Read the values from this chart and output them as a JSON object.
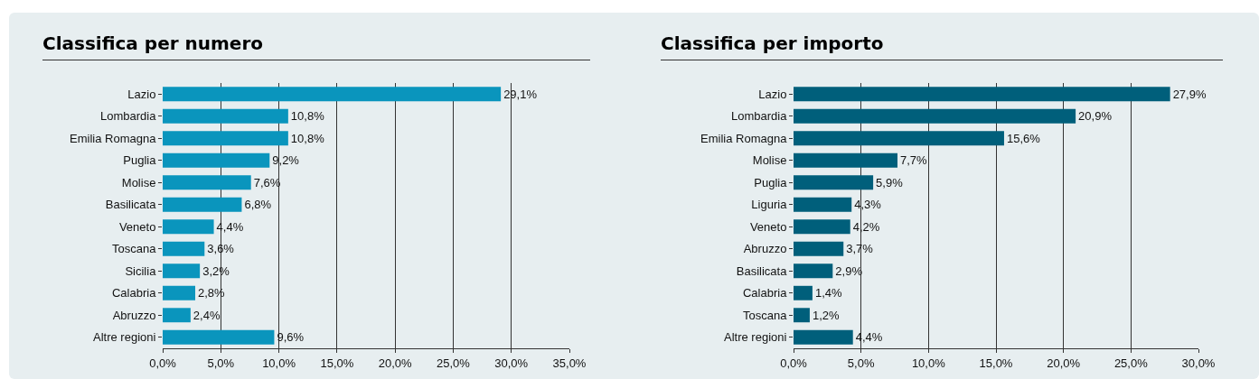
{
  "chart_data": [
    {
      "type": "bar",
      "title": "Classifica per numero",
      "orientation": "horizontal",
      "categories": [
        "Lazio",
        "Lombardia",
        "Emilia Romagna",
        "Puglia",
        "Molise",
        "Basilicata",
        "Veneto",
        "Toscana",
        "Sicilia",
        "Calabria",
        "Abruzzo",
        "Altre regioni"
      ],
      "values": [
        29.1,
        10.8,
        10.8,
        9.2,
        7.6,
        6.8,
        4.4,
        3.6,
        3.2,
        2.8,
        2.4,
        9.6
      ],
      "value_labels": [
        "29,1%",
        "10,8%",
        "10,8%",
        "9,2%",
        "7,6%",
        "6,8%",
        "4,4%",
        "3,6%",
        "3,2%",
        "2,8%",
        "2,4%",
        "9,6%"
      ],
      "color": "#0a95bd",
      "xlim": [
        0,
        35
      ],
      "xticks": [
        {
          "value": 0,
          "label": "0,0%"
        },
        {
          "value": 5,
          "label": "5,0%"
        },
        {
          "value": 10,
          "label": "10,0%"
        },
        {
          "value": 15,
          "label": "15,0%"
        },
        {
          "value": 20,
          "label": "20,0%"
        },
        {
          "value": 25,
          "label": "25,0%"
        },
        {
          "value": 30,
          "label": "30,0%"
        },
        {
          "value": 35,
          "label": "35,0%"
        }
      ],
      "grid": "x",
      "legend": false
    },
    {
      "type": "bar",
      "title": "Classifica per importo",
      "orientation": "horizontal",
      "categories": [
        "Lazio",
        "Lombardia",
        "Emilia Romagna",
        "Molise",
        "Puglia",
        "Liguria",
        "Veneto",
        "Abruzzo",
        "Basilicata",
        "Calabria",
        "Toscana",
        "Altre regioni"
      ],
      "values": [
        27.9,
        20.9,
        15.6,
        7.7,
        5.9,
        4.3,
        4.2,
        3.7,
        2.9,
        1.4,
        1.2,
        4.4
      ],
      "value_labels": [
        "27,9%",
        "20,9%",
        "15,6%",
        "7,7%",
        "5,9%",
        "4,3%",
        "4,2%",
        "3,7%",
        "2,9%",
        "1,4%",
        "1,2%",
        "4,4%"
      ],
      "color": "#005f7b",
      "xlim": [
        0,
        30
      ],
      "xticks": [
        {
          "value": 0,
          "label": "0,0%"
        },
        {
          "value": 5,
          "label": "5,0%"
        },
        {
          "value": 10,
          "label": "10,0%"
        },
        {
          "value": 15,
          "label": "15,0%"
        },
        {
          "value": 20,
          "label": "20,0%"
        },
        {
          "value": 25,
          "label": "25,0%"
        },
        {
          "value": 30,
          "label": "30,0%"
        }
      ],
      "grid": "x",
      "legend": false
    }
  ]
}
